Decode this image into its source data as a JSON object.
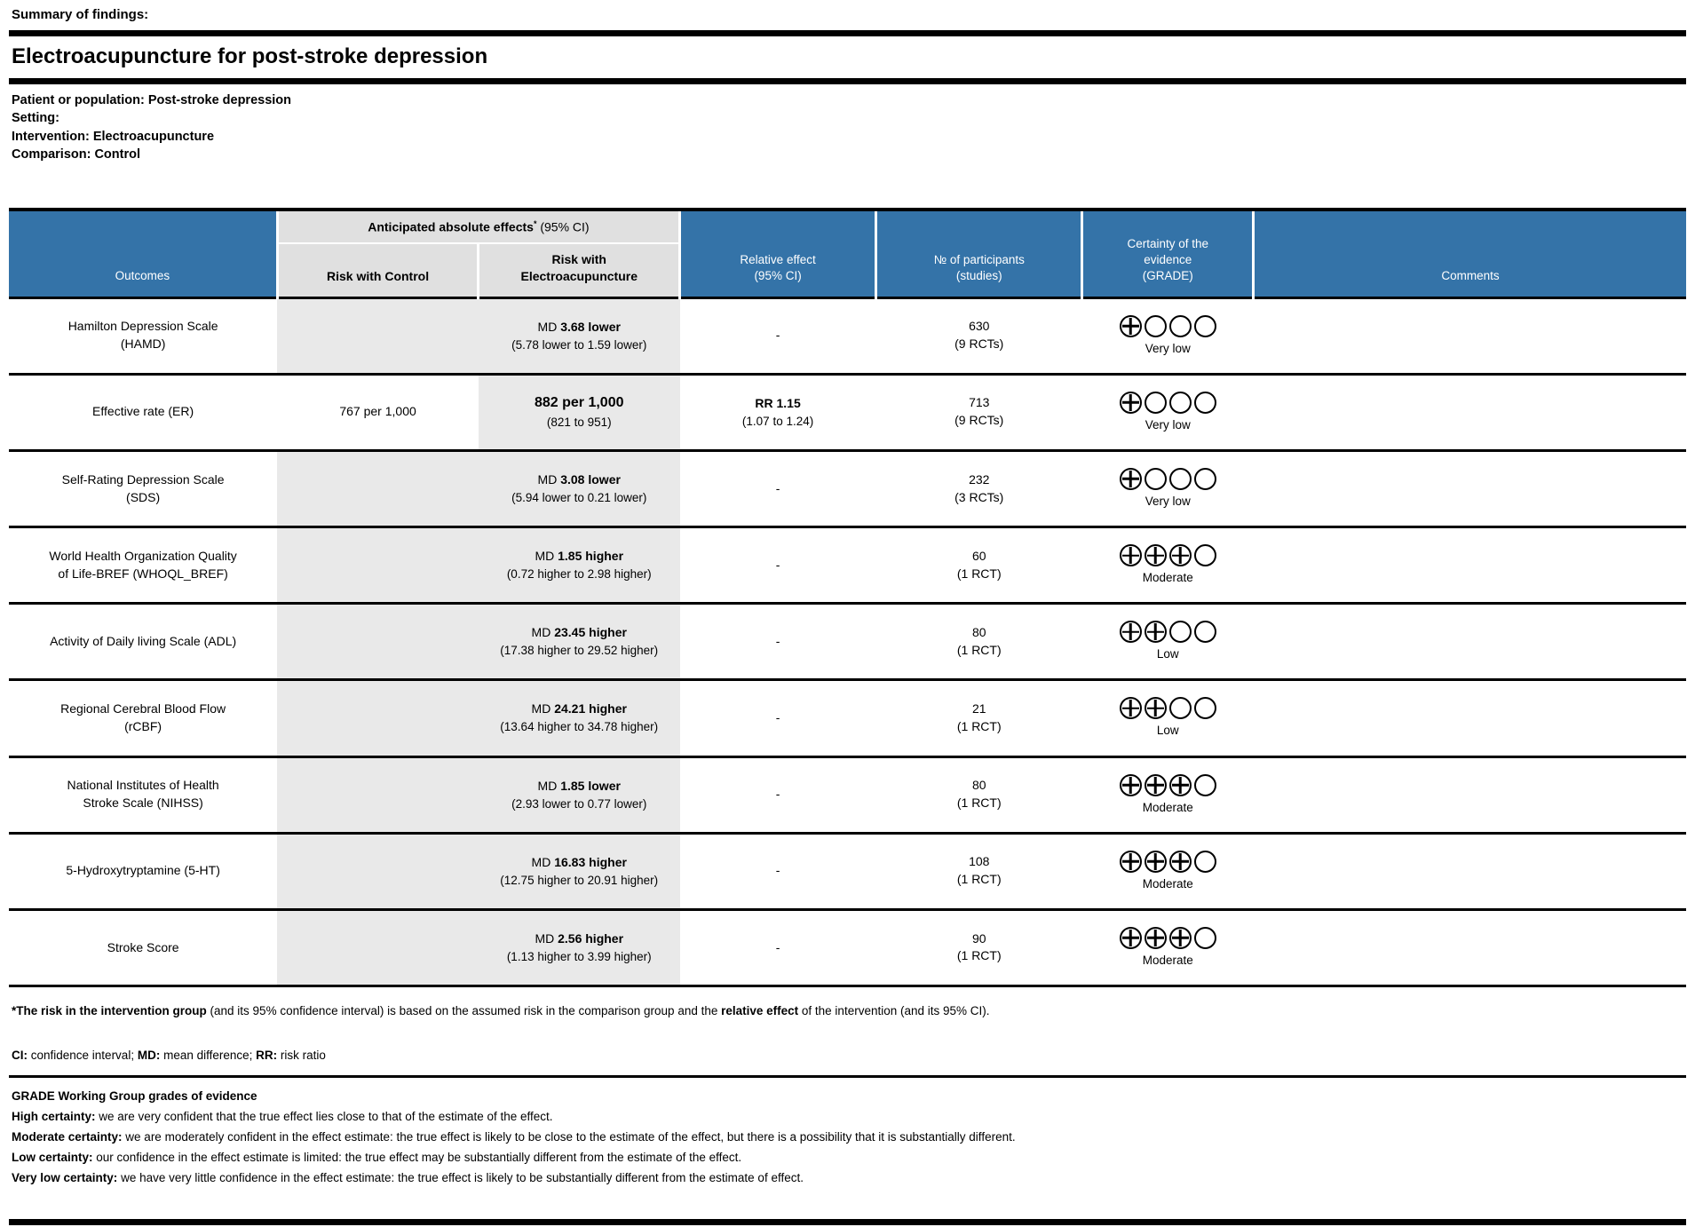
{
  "page": {
    "summary_label": "Summary of findings:",
    "title": "Electroacupuncture for post-stroke depression",
    "population": [
      {
        "label": "Patient or population:",
        "value": "Post-stroke depression"
      },
      {
        "label": "Setting:",
        "value": ""
      },
      {
        "label": "Intervention:",
        "value": "Electroacupuncture"
      },
      {
        "label": "Comparison:",
        "value": "Control"
      }
    ]
  },
  "colors": {
    "header_blue": "#3473a8",
    "header_gray": "#e0e0e0",
    "row_shade_gray": "#e9e9e9"
  },
  "table": {
    "header": {
      "outcomes": "Outcomes",
      "absolute_effects_title": "Anticipated absolute effects",
      "absolute_effects_sup": "*",
      "absolute_effects_suffix": " (95% CI)",
      "risk_control": "Risk with Control",
      "risk_intervention": "Risk with\nElectroacupuncture",
      "relative_effect": "Relative effect\n(95% CI)",
      "participants": "№ of participants\n(studies)",
      "certainty": "Certainty of the\nevidence\n(GRADE)",
      "comments": "Comments"
    },
    "rows": [
      {
        "outcome": "Hamilton Depression Scale (HAMD)",
        "shade_control": true,
        "risk_control": "",
        "effect_prefix": "MD ",
        "effect_bold": "3.68 lower",
        "effect_ci": "(5.78 lower to 1.59 lower)",
        "large": false,
        "relative_main": "-",
        "relative_ci": "",
        "participants": "630",
        "studies": "(9 RCTs)",
        "grade_filled": 1,
        "grade_label": "Very low",
        "comments": ""
      },
      {
        "outcome": "Effective rate (ER)",
        "shade_control": false,
        "risk_control": "767 per 1,000",
        "effect_prefix": "",
        "effect_bold": "882 per 1,000",
        "effect_ci": "(821 to 951)",
        "large": true,
        "relative_main": "RR 1.15",
        "relative_ci": "(1.07 to 1.24)",
        "participants": "713",
        "studies": "(9 RCTs)",
        "grade_filled": 1,
        "grade_label": "Very low",
        "comments": ""
      },
      {
        "outcome": "Self-Rating Depression Scale (SDS)",
        "shade_control": true,
        "risk_control": "",
        "effect_prefix": "MD ",
        "effect_bold": "3.08 lower",
        "effect_ci": "(5.94 lower to 0.21 lower)",
        "large": false,
        "relative_main": "-",
        "relative_ci": "",
        "participants": "232",
        "studies": "(3 RCTs)",
        "grade_filled": 1,
        "grade_label": "Very low",
        "comments": ""
      },
      {
        "outcome": "World Health Organization Quality of Life-BREF (WHOQL_BREF)",
        "shade_control": true,
        "risk_control": "",
        "effect_prefix": "MD ",
        "effect_bold": "1.85 higher",
        "effect_ci": "(0.72 higher to 2.98 higher)",
        "large": false,
        "relative_main": "-",
        "relative_ci": "",
        "participants": "60",
        "studies": "(1 RCT)",
        "grade_filled": 3,
        "grade_label": "Moderate",
        "comments": ""
      },
      {
        "outcome": "Activity of Daily living Scale (ADL)",
        "shade_control": true,
        "risk_control": "",
        "effect_prefix": "MD ",
        "effect_bold": "23.45 higher",
        "effect_ci": "(17.38 higher to 29.52 higher)",
        "large": false,
        "relative_main": "-",
        "relative_ci": "",
        "participants": "80",
        "studies": "(1 RCT)",
        "grade_filled": 2,
        "grade_label": "Low",
        "comments": ""
      },
      {
        "outcome": "Regional Cerebral Blood Flow (rCBF)",
        "shade_control": true,
        "risk_control": "",
        "effect_prefix": "MD ",
        "effect_bold": "24.21 higher",
        "effect_ci": "(13.64 higher to 34.78 higher)",
        "large": false,
        "relative_main": "-",
        "relative_ci": "",
        "participants": "21",
        "studies": "(1 RCT)",
        "grade_filled": 2,
        "grade_label": "Low",
        "comments": ""
      },
      {
        "outcome": "National Institutes of Health Stroke Scale (NIHSS)",
        "shade_control": true,
        "risk_control": "",
        "effect_prefix": "MD ",
        "effect_bold": "1.85 lower",
        "effect_ci": "(2.93 lower to 0.77 lower)",
        "large": false,
        "relative_main": "-",
        "relative_ci": "",
        "participants": "80",
        "studies": "(1 RCT)",
        "grade_filled": 3,
        "grade_label": "Moderate",
        "comments": ""
      },
      {
        "outcome": "5-Hydroxytryptamine (5-HT)",
        "shade_control": true,
        "risk_control": "",
        "effect_prefix": "MD ",
        "effect_bold": "16.83 higher",
        "effect_ci": "(12.75 higher to 20.91 higher)",
        "large": false,
        "relative_main": "-",
        "relative_ci": "",
        "participants": "108",
        "studies": "(1 RCT)",
        "grade_filled": 3,
        "grade_label": "Moderate",
        "comments": ""
      },
      {
        "outcome": "Stroke Score",
        "shade_control": true,
        "risk_control": "",
        "effect_prefix": "MD ",
        "effect_bold": "2.56 higher",
        "effect_ci": "(1.13 higher to 3.99 higher)",
        "large": false,
        "relative_main": "-",
        "relative_ci": "",
        "participants": "90",
        "studies": "(1 RCT)",
        "grade_filled": 3,
        "grade_label": "Moderate",
        "comments": ""
      }
    ]
  },
  "footnotes": {
    "star": [
      {
        "t": "*The risk in the intervention group",
        "b": true
      },
      {
        "t": " (and its 95% confidence interval) is based on the assumed risk in the comparison group and the ",
        "b": false
      },
      {
        "t": "relative effect",
        "b": true
      },
      {
        "t": " of the intervention (and its 95% CI).",
        "b": false
      }
    ],
    "abbreviations": [
      {
        "t": "CI:",
        "b": true
      },
      {
        "t": " confidence interval; ",
        "b": false
      },
      {
        "t": "MD:",
        "b": true
      },
      {
        "t": " mean difference; ",
        "b": false
      },
      {
        "t": "RR:",
        "b": true
      },
      {
        "t": " risk ratio",
        "b": false
      }
    ]
  },
  "grade_section": {
    "heading": "GRADE Working Group grades of evidence",
    "lines": [
      {
        "label": "High certainty:",
        "text": "we are very confident that the true effect lies close to that of the estimate of the effect."
      },
      {
        "label": "Moderate certainty:",
        "text": "we are moderately confident in the effect estimate: the true effect is likely to be close to the estimate of the effect, but there is a possibility that it is substantially different."
      },
      {
        "label": "Low certainty:",
        "text": "our confidence in the effect estimate is limited: the true effect may be substantially different from the estimate of the effect."
      },
      {
        "label": "Very low certainty:",
        "text": "we have very little confidence in the effect estimate: the true effect is likely to be substantially different from the estimate of effect."
      }
    ]
  }
}
